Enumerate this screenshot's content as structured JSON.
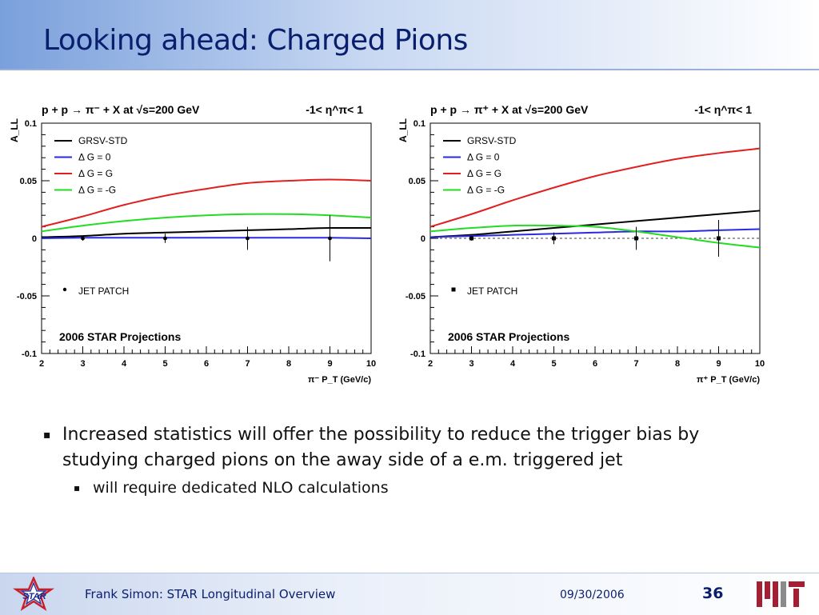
{
  "slide": {
    "title": "Looking ahead: Charged Pions",
    "bullets": [
      {
        "text": "Increased statistics will offer the possibility to reduce the trigger bias by studying charged pions on the away side of a e.m. triggered jet",
        "sub": [
          "will require dedicated NLO calculations"
        ]
      }
    ],
    "footer": {
      "text": "Frank Simon: STAR Longitudinal Overview",
      "date": "09/30/2006",
      "page": "36"
    },
    "bullet_symbol": "▪",
    "logo_left_text": "STAR",
    "colors": {
      "title": "#0a1e6e",
      "header_gradient": [
        "#7aa0dc",
        "#ffffff"
      ],
      "mit_red": "#a31f34",
      "mit_gray": "#8a8b8c"
    }
  },
  "chart_data": [
    {
      "type": "line",
      "title": "p + p → π⁻ + X at √s=200 GeV",
      "title_right": "-1< η^π< 1",
      "xlabel": "π⁻ P_T (GeV/c)",
      "ylabel": "A_LL",
      "xlim": [
        2,
        10
      ],
      "ylim": [
        -0.1,
        0.1
      ],
      "xticks": [
        2,
        3,
        4,
        5,
        6,
        7,
        8,
        9,
        10
      ],
      "yticks": [
        -0.1,
        -0.05,
        0,
        0.05,
        0.1
      ],
      "ytick_labels": [
        "-0.1",
        "-0.05",
        "0",
        "0.05",
        "0.1"
      ],
      "legend": [
        "GRSV-STD",
        "Δ G =  0",
        "Δ G =  G",
        "Δ G = -G"
      ],
      "annotations": [
        "JET PATCH",
        "2006 STAR Projections"
      ],
      "series": [
        {
          "name": "GRSV-STD",
          "color": "#000000",
          "x": [
            2,
            3,
            4,
            5,
            6,
            7,
            8,
            9,
            10
          ],
          "y": [
            0.001,
            0.002,
            0.004,
            0.005,
            0.006,
            0.007,
            0.008,
            0.009,
            0.009
          ]
        },
        {
          "name": "Δ G =  0",
          "color": "#2a2ae0",
          "x": [
            2,
            3,
            4,
            5,
            6,
            7,
            8,
            9,
            10
          ],
          "y": [
            0.0,
            0.0005,
            0.0005,
            0.0005,
            0.0005,
            0.0005,
            0.0005,
            0.0005,
            0.0
          ]
        },
        {
          "name": "Δ G =  G",
          "color": "#e02020",
          "x": [
            2,
            3,
            4,
            5,
            6,
            7,
            8,
            9,
            10
          ],
          "y": [
            0.01,
            0.019,
            0.029,
            0.037,
            0.043,
            0.048,
            0.05,
            0.051,
            0.05
          ]
        },
        {
          "name": "Δ G = -G",
          "color": "#22dd22",
          "x": [
            2,
            3,
            4,
            5,
            6,
            7,
            8,
            9,
            10
          ],
          "y": [
            0.006,
            0.011,
            0.015,
            0.018,
            0.02,
            0.021,
            0.021,
            0.02,
            0.018
          ]
        }
      ],
      "points": {
        "name": "JET PATCH",
        "x": [
          3,
          5,
          7,
          9
        ],
        "y": [
          0.0,
          0.0,
          0.0,
          0.0
        ],
        "err": [
          0.002,
          0.004,
          0.01,
          0.02
        ]
      }
    },
    {
      "type": "line",
      "title": "p + p → π⁺ + X at √s=200 GeV",
      "title_right": "-1< η^π< 1",
      "xlabel": "π⁺ P_T (GeV/c)",
      "ylabel": "A_LL",
      "xlim": [
        2,
        10
      ],
      "ylim": [
        -0.1,
        0.1
      ],
      "xticks": [
        2,
        3,
        4,
        5,
        6,
        7,
        8,
        9,
        10
      ],
      "yticks": [
        -0.1,
        -0.05,
        0,
        0.05,
        0.1
      ],
      "ytick_labels": [
        "-0.1",
        "-0.05",
        "0",
        "0.05",
        "0.1"
      ],
      "legend": [
        "GRSV-STD",
        "Δ G =  0",
        "Δ G =  G",
        "Δ G = -G"
      ],
      "annotations": [
        "JET PATCH",
        "2006 STAR Projections"
      ],
      "series": [
        {
          "name": "GRSV-STD",
          "color": "#000000",
          "x": [
            2,
            3,
            4,
            5,
            6,
            7,
            8,
            9,
            10
          ],
          "y": [
            0.001,
            0.003,
            0.006,
            0.009,
            0.012,
            0.015,
            0.018,
            0.021,
            0.024
          ]
        },
        {
          "name": "Δ G =  0",
          "color": "#2a2ae0",
          "x": [
            2,
            3,
            4,
            5,
            6,
            7,
            8,
            9,
            10
          ],
          "y": [
            0.001,
            0.002,
            0.003,
            0.004,
            0.005,
            0.006,
            0.006,
            0.007,
            0.008
          ]
        },
        {
          "name": "Δ G =  G",
          "color": "#e02020",
          "x": [
            2,
            3,
            4,
            5,
            6,
            7,
            8,
            9,
            10
          ],
          "y": [
            0.01,
            0.021,
            0.033,
            0.044,
            0.054,
            0.062,
            0.069,
            0.074,
            0.078
          ]
        },
        {
          "name": "Δ G = -G",
          "color": "#22dd22",
          "x": [
            2,
            3,
            4,
            5,
            6,
            7,
            8,
            9,
            10
          ],
          "y": [
            0.006,
            0.009,
            0.011,
            0.011,
            0.01,
            0.006,
            0.001,
            -0.004,
            -0.008
          ]
        }
      ],
      "points": {
        "name": "JET PATCH",
        "x": [
          3,
          5,
          7,
          9
        ],
        "y": [
          0.0,
          0.0,
          0.0,
          0.0
        ],
        "err": [
          0.002,
          0.005,
          0.01,
          0.016
        ]
      },
      "dashed_zero_line": true
    }
  ]
}
